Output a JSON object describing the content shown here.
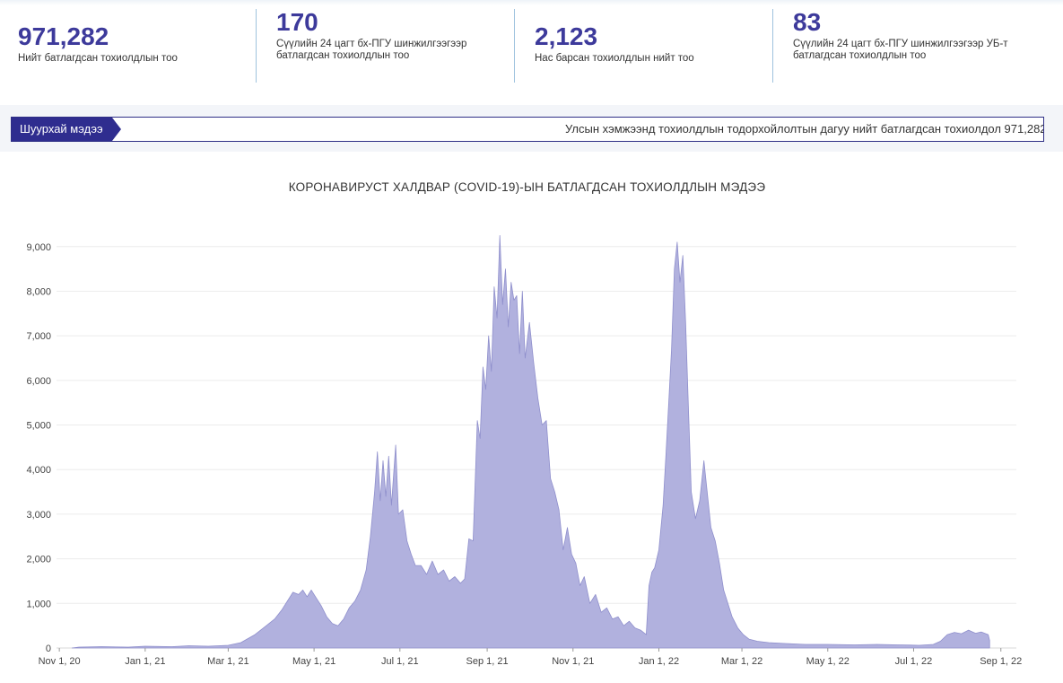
{
  "stats": [
    {
      "value": "971,282",
      "label_lines": [
        "Нийт батлагдсан тохиолдлын тоо"
      ]
    },
    {
      "value": "170",
      "label_lines": [
        "Сүүлийн 24 цагт бх-ПГУ шинжилгээгээр",
        "батлагдсан тохиолдлын тоо"
      ]
    },
    {
      "value": "2,123",
      "label_lines": [
        "Нас барсан тохиолдлын нийт тоо"
      ]
    },
    {
      "value": "83",
      "label_lines": [
        "Сүүлийн 24 цагт бх-ПГУ шинжилгээгээр УБ-т",
        "батлагдсан тохиолдлын тоо"
      ]
    }
  ],
  "news": {
    "badge": "Шуурхай мэдээ",
    "text": "Улсын хэмжээнд тохиолдлын тодорхойлолтын дагуу нийт батлагдсан тохиолдол 971,282"
  },
  "chart_data": {
    "type": "area",
    "title": "КОРОНАВИРУСТ ХАЛДВАР (COVID-19)-ЫН БАТЛАГДСАН ТОХИОЛДЛЫН МЭДЭЭ",
    "xlabel": "",
    "ylabel": "",
    "x_tick_labels": [
      "Nov 1, 20",
      "Jan 1, 21",
      "Mar 1, 21",
      "May 1, 21",
      "Jul 1, 21",
      "Sep 1, 21",
      "Nov 1, 21",
      "Jan 1, 22",
      "Mar 1, 22",
      "May 1, 22",
      "Jul 1, 22",
      "Sep 1, 22"
    ],
    "y_tick_labels": [
      "0",
      "1,000",
      "2,000",
      "3,000",
      "4,000",
      "5,000",
      "6,000",
      "7,000",
      "8,000",
      "9,000"
    ],
    "xlim": [
      "2020-10-30",
      "2022-09-12"
    ],
    "ylim": [
      0,
      9700
    ],
    "grid": true,
    "color": "#b1b1de",
    "stroke": "#8f8fcc",
    "series": [
      {
        "points": [
          [
            "2020-11-10",
            0
          ],
          [
            "2020-11-15",
            20
          ],
          [
            "2020-12-01",
            30
          ],
          [
            "2020-12-20",
            20
          ],
          [
            "2021-01-01",
            40
          ],
          [
            "2021-01-20",
            30
          ],
          [
            "2021-02-01",
            50
          ],
          [
            "2021-02-15",
            40
          ],
          [
            "2021-03-01",
            60
          ],
          [
            "2021-03-10",
            120
          ],
          [
            "2021-03-20",
            300
          ],
          [
            "2021-03-28",
            500
          ],
          [
            "2021-04-03",
            650
          ],
          [
            "2021-04-08",
            850
          ],
          [
            "2021-04-12",
            1050
          ],
          [
            "2021-04-16",
            1250
          ],
          [
            "2021-04-20",
            1200
          ],
          [
            "2021-04-23",
            1300
          ],
          [
            "2021-04-26",
            1150
          ],
          [
            "2021-04-29",
            1300
          ],
          [
            "2021-05-02",
            1150
          ],
          [
            "2021-05-06",
            950
          ],
          [
            "2021-05-10",
            700
          ],
          [
            "2021-05-14",
            550
          ],
          [
            "2021-05-18",
            500
          ],
          [
            "2021-05-22",
            650
          ],
          [
            "2021-05-26",
            900
          ],
          [
            "2021-05-30",
            1050
          ],
          [
            "2021-06-03",
            1300
          ],
          [
            "2021-06-07",
            1750
          ],
          [
            "2021-06-10",
            2500
          ],
          [
            "2021-06-13",
            3500
          ],
          [
            "2021-06-15",
            4400
          ],
          [
            "2021-06-17",
            3300
          ],
          [
            "2021-06-19",
            4200
          ],
          [
            "2021-06-21",
            3400
          ],
          [
            "2021-06-23",
            4300
          ],
          [
            "2021-06-25",
            3200
          ],
          [
            "2021-06-28",
            4550
          ],
          [
            "2021-06-30",
            3000
          ],
          [
            "2021-07-03",
            3100
          ],
          [
            "2021-07-06",
            2400
          ],
          [
            "2021-07-09",
            2100
          ],
          [
            "2021-07-12",
            1850
          ],
          [
            "2021-07-16",
            1850
          ],
          [
            "2021-07-20",
            1650
          ],
          [
            "2021-07-24",
            1950
          ],
          [
            "2021-07-28",
            1650
          ],
          [
            "2021-08-01",
            1750
          ],
          [
            "2021-08-05",
            1500
          ],
          [
            "2021-08-09",
            1600
          ],
          [
            "2021-08-13",
            1450
          ],
          [
            "2021-08-16",
            1550
          ],
          [
            "2021-08-19",
            2450
          ],
          [
            "2021-08-22",
            2400
          ],
          [
            "2021-08-25",
            5100
          ],
          [
            "2021-08-27",
            4700
          ],
          [
            "2021-08-29",
            6300
          ],
          [
            "2021-08-31",
            5800
          ],
          [
            "2021-09-02",
            7000
          ],
          [
            "2021-09-04",
            6200
          ],
          [
            "2021-09-06",
            8100
          ],
          [
            "2021-09-08",
            7400
          ],
          [
            "2021-09-10",
            9250
          ],
          [
            "2021-09-12",
            7700
          ],
          [
            "2021-09-14",
            8500
          ],
          [
            "2021-09-16",
            7200
          ],
          [
            "2021-09-18",
            8200
          ],
          [
            "2021-09-20",
            7800
          ],
          [
            "2021-09-22",
            7900
          ],
          [
            "2021-09-24",
            6600
          ],
          [
            "2021-09-26",
            8000
          ],
          [
            "2021-09-28",
            6500
          ],
          [
            "2021-10-01",
            7300
          ],
          [
            "2021-10-04",
            6400
          ],
          [
            "2021-10-07",
            5600
          ],
          [
            "2021-10-10",
            5000
          ],
          [
            "2021-10-13",
            5100
          ],
          [
            "2021-10-16",
            3800
          ],
          [
            "2021-10-19",
            3500
          ],
          [
            "2021-10-22",
            3100
          ],
          [
            "2021-10-25",
            2200
          ],
          [
            "2021-10-28",
            2700
          ],
          [
            "2021-10-31",
            2100
          ],
          [
            "2021-11-03",
            1900
          ],
          [
            "2021-11-06",
            1400
          ],
          [
            "2021-11-09",
            1600
          ],
          [
            "2021-11-13",
            1000
          ],
          [
            "2021-11-17",
            1200
          ],
          [
            "2021-11-21",
            800
          ],
          [
            "2021-11-25",
            900
          ],
          [
            "2021-11-29",
            650
          ],
          [
            "2021-12-03",
            700
          ],
          [
            "2021-12-07",
            500
          ],
          [
            "2021-12-11",
            600
          ],
          [
            "2021-12-15",
            450
          ],
          [
            "2021-12-19",
            400
          ],
          [
            "2021-12-23",
            300
          ],
          [
            "2021-12-25",
            1400
          ],
          [
            "2021-12-27",
            1700
          ],
          [
            "2021-12-29",
            1800
          ],
          [
            "2022-01-01",
            2200
          ],
          [
            "2022-01-04",
            3200
          ],
          [
            "2022-01-06",
            4300
          ],
          [
            "2022-01-08",
            5500
          ],
          [
            "2022-01-10",
            6700
          ],
          [
            "2022-01-12",
            8500
          ],
          [
            "2022-01-14",
            9100
          ],
          [
            "2022-01-16",
            8200
          ],
          [
            "2022-01-18",
            8800
          ],
          [
            "2022-01-20",
            7300
          ],
          [
            "2022-01-22",
            5400
          ],
          [
            "2022-01-24",
            3500
          ],
          [
            "2022-01-27",
            2900
          ],
          [
            "2022-01-30",
            3300
          ],
          [
            "2022-02-02",
            4200
          ],
          [
            "2022-02-04",
            3600
          ],
          [
            "2022-02-07",
            2700
          ],
          [
            "2022-02-10",
            2400
          ],
          [
            "2022-02-13",
            1900
          ],
          [
            "2022-02-16",
            1300
          ],
          [
            "2022-02-19",
            1000
          ],
          [
            "2022-02-22",
            700
          ],
          [
            "2022-02-26",
            450
          ],
          [
            "2022-03-02",
            300
          ],
          [
            "2022-03-06",
            200
          ],
          [
            "2022-03-12",
            150
          ],
          [
            "2022-03-20",
            120
          ],
          [
            "2022-04-01",
            100
          ],
          [
            "2022-04-15",
            80
          ],
          [
            "2022-05-01",
            80
          ],
          [
            "2022-05-20",
            70
          ],
          [
            "2022-06-05",
            80
          ],
          [
            "2022-06-20",
            70
          ],
          [
            "2022-07-05",
            60
          ],
          [
            "2022-07-15",
            80
          ],
          [
            "2022-07-20",
            150
          ],
          [
            "2022-07-25",
            300
          ],
          [
            "2022-07-30",
            350
          ],
          [
            "2022-08-04",
            320
          ],
          [
            "2022-08-09",
            400
          ],
          [
            "2022-08-14",
            330
          ],
          [
            "2022-08-18",
            360
          ],
          [
            "2022-08-23",
            300
          ],
          [
            "2022-08-24",
            170
          ]
        ]
      }
    ]
  }
}
